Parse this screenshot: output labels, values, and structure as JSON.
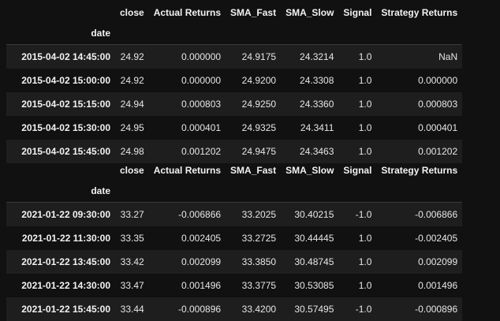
{
  "tables": [
    {
      "columns": [
        "close",
        "Actual Returns",
        "SMA_Fast",
        "SMA_Slow",
        "Signal",
        "Strategy Returns"
      ],
      "index_name": "date",
      "rows": [
        {
          "date": "2015-04-02 14:45:00",
          "cells": [
            "24.92",
            "0.000000",
            "24.9175",
            "24.3214",
            "1.0",
            "NaN"
          ]
        },
        {
          "date": "2015-04-02 15:00:00",
          "cells": [
            "24.92",
            "0.000000",
            "24.9200",
            "24.3308",
            "1.0",
            "0.000000"
          ]
        },
        {
          "date": "2015-04-02 15:15:00",
          "cells": [
            "24.94",
            "0.000803",
            "24.9250",
            "24.3360",
            "1.0",
            "0.000803"
          ]
        },
        {
          "date": "2015-04-02 15:30:00",
          "cells": [
            "24.95",
            "0.000401",
            "24.9325",
            "24.3411",
            "1.0",
            "0.000401"
          ]
        },
        {
          "date": "2015-04-02 15:45:00",
          "cells": [
            "24.98",
            "0.001202",
            "24.9475",
            "24.3463",
            "1.0",
            "0.001202"
          ]
        }
      ]
    },
    {
      "columns": [
        "close",
        "Actual Returns",
        "SMA_Fast",
        "SMA_Slow",
        "Signal",
        "Strategy Returns"
      ],
      "index_name": "date",
      "rows": [
        {
          "date": "2021-01-22 09:30:00",
          "cells": [
            "33.27",
            "-0.006866",
            "33.2025",
            "30.40215",
            "-1.0",
            "-0.006866"
          ]
        },
        {
          "date": "2021-01-22 11:30:00",
          "cells": [
            "33.35",
            "0.002405",
            "33.2725",
            "30.44445",
            "1.0",
            "-0.002405"
          ]
        },
        {
          "date": "2021-01-22 13:45:00",
          "cells": [
            "33.42",
            "0.002099",
            "33.3850",
            "30.48745",
            "1.0",
            "0.002099"
          ]
        },
        {
          "date": "2021-01-22 14:30:00",
          "cells": [
            "33.47",
            "0.001496",
            "33.3775",
            "30.53085",
            "1.0",
            "0.001496"
          ]
        },
        {
          "date": "2021-01-22 15:45:00",
          "cells": [
            "33.44",
            "-0.000896",
            "33.4200",
            "30.57495",
            "-1.0",
            "-0.000896"
          ]
        }
      ]
    }
  ]
}
